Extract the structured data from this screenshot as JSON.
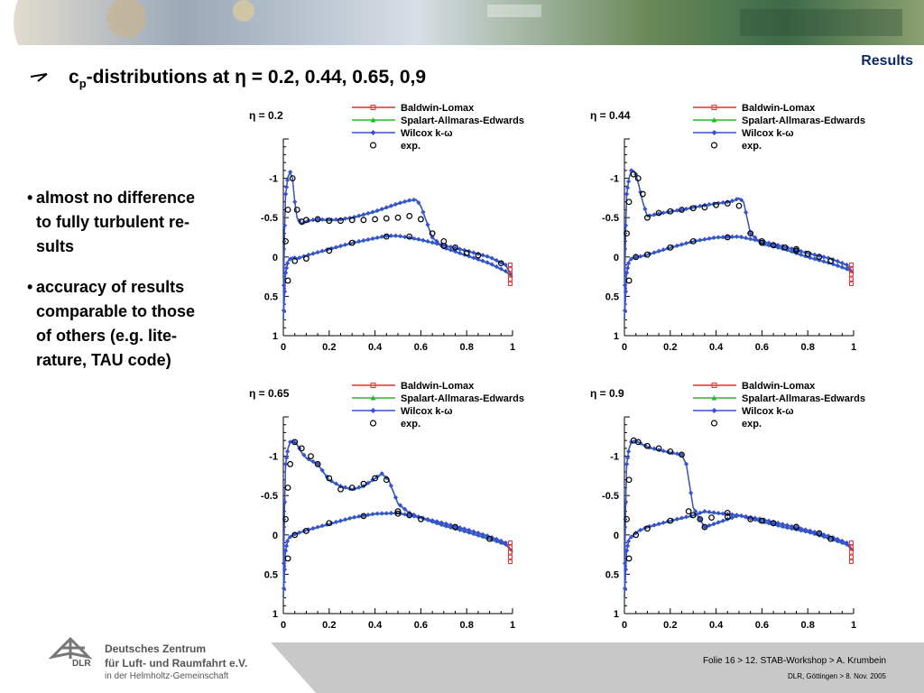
{
  "header": {
    "section": "Results",
    "title_prefix": "c",
    "title_sub": "p",
    "title_rest": "-distributions at η = 0.2, 0.44, 0.65, 0,9"
  },
  "bullets": [
    {
      "lines": [
        "almost no difference",
        "to fully turbulent re-",
        "sults"
      ]
    },
    {
      "lines": [
        "accuracy of results",
        "comparable to those",
        "of others (e.g. lite-",
        "rature, TAU code)"
      ]
    }
  ],
  "footer": {
    "org_line1": "Deutsches Zentrum",
    "org_line2": "für Luft- und Raumfahrt e.V.",
    "org_line3": "in der Helmholtz-Gemeinschaft",
    "logo_text": "DLR",
    "slide_info": "Folie 16 > 12. STAB-Workshop > A. Krumbein",
    "location_date": "DLR, Göttingen > 8. Nov. 2005"
  },
  "colors": {
    "baldwin": "#e03030",
    "spalart": "#20c020",
    "wilcox": "#3a4fd8",
    "exp": "#000000",
    "title_blue": "#0b2a6a"
  },
  "chart_data": [
    {
      "type": "line",
      "eta_label": "η = 0.2",
      "xlim": [
        0,
        1
      ],
      "ylim": [
        -1.5,
        1
      ],
      "y_inverted": true,
      "xticks": [
        "0",
        "0.2",
        "0.4",
        "0.6",
        "0.8",
        "1"
      ],
      "yticks": [
        "-1",
        "-0.5",
        "0",
        "0.5",
        "1"
      ],
      "legend": [
        "Baldwin-Lomax",
        "Spalart-Allmaras-Edwards",
        "Wilcox k-ω",
        "exp."
      ],
      "upper": {
        "x": [
          0,
          0.005,
          0.01,
          0.02,
          0.03,
          0.04,
          0.05,
          0.06,
          0.08,
          0.1,
          0.15,
          0.2,
          0.25,
          0.3,
          0.35,
          0.4,
          0.45,
          0.5,
          0.55,
          0.58,
          0.6,
          0.65,
          0.7,
          0.8,
          0.9,
          0.97,
          1.0
        ],
        "y": [
          0.8,
          -0.3,
          -0.8,
          -1.02,
          -1.08,
          -1.0,
          -0.7,
          -0.5,
          -0.42,
          -0.46,
          -0.48,
          -0.47,
          -0.48,
          -0.5,
          -0.54,
          -0.58,
          -0.63,
          -0.68,
          -0.72,
          -0.73,
          -0.65,
          -0.25,
          -0.12,
          -0.02,
          0.08,
          0.18,
          0.25
        ]
      },
      "lower": {
        "x": [
          0,
          0.01,
          0.02,
          0.04,
          0.06,
          0.1,
          0.2,
          0.3,
          0.4,
          0.45,
          0.5,
          0.6,
          0.7,
          0.8,
          0.9,
          0.97,
          1.0
        ],
        "y": [
          0.8,
          0.2,
          0.05,
          0.0,
          0.02,
          -0.02,
          -0.1,
          -0.18,
          -0.24,
          -0.27,
          -0.27,
          -0.22,
          -0.15,
          -0.08,
          0.0,
          0.1,
          0.25
        ]
      },
      "exp_upper": {
        "x": [
          0.01,
          0.02,
          0.04,
          0.06,
          0.08,
          0.1,
          0.15,
          0.2,
          0.25,
          0.3,
          0.35,
          0.4,
          0.45,
          0.5,
          0.55,
          0.6,
          0.65,
          0.7,
          0.75,
          0.8
        ],
        "y": [
          -0.2,
          -0.6,
          -1.0,
          -0.6,
          -0.45,
          -0.47,
          -0.48,
          -0.46,
          -0.46,
          -0.47,
          -0.47,
          -0.48,
          -0.49,
          -0.5,
          -0.52,
          -0.48,
          -0.3,
          -0.2,
          -0.12,
          -0.05
        ]
      },
      "exp_lower": {
        "x": [
          0.02,
          0.05,
          0.1,
          0.2,
          0.3,
          0.45,
          0.55,
          0.7,
          0.85,
          0.95
        ],
        "y": [
          0.3,
          0.05,
          0.02,
          -0.08,
          -0.18,
          -0.26,
          -0.26,
          -0.14,
          -0.02,
          0.08
        ]
      }
    },
    {
      "type": "line",
      "eta_label": "η = 0.44",
      "xlim": [
        0,
        1
      ],
      "ylim": [
        -1.5,
        1
      ],
      "y_inverted": true,
      "xticks": [
        "0",
        "0.2",
        "0.4",
        "0.6",
        "0.8",
        "1"
      ],
      "yticks": [
        "-1",
        "-0.5",
        "0",
        "0.5",
        "1"
      ],
      "legend": [
        "Baldwin-Lomax",
        "Spalart-Allmaras-Edwards",
        "Wilcox k-ω",
        "exp."
      ],
      "upper": {
        "x": [
          0,
          0.005,
          0.01,
          0.02,
          0.03,
          0.04,
          0.05,
          0.06,
          0.08,
          0.1,
          0.15,
          0.2,
          0.25,
          0.3,
          0.35,
          0.4,
          0.45,
          0.48,
          0.5,
          0.52,
          0.55,
          0.6,
          0.7,
          0.8,
          0.9,
          0.97,
          1.0
        ],
        "y": [
          0.8,
          -0.3,
          -0.8,
          -1.0,
          -1.1,
          -1.1,
          -1.05,
          -0.95,
          -0.7,
          -0.52,
          -0.55,
          -0.58,
          -0.6,
          -0.63,
          -0.66,
          -0.68,
          -0.7,
          -0.72,
          -0.75,
          -0.7,
          -0.3,
          -0.17,
          -0.1,
          0.0,
          0.08,
          0.15,
          0.2
        ]
      },
      "lower": {
        "x": [
          0,
          0.01,
          0.02,
          0.04,
          0.06,
          0.1,
          0.2,
          0.3,
          0.4,
          0.5,
          0.6,
          0.7,
          0.8,
          0.9,
          0.97,
          1.0
        ],
        "y": [
          0.8,
          0.2,
          0.05,
          0.0,
          0.0,
          -0.03,
          -0.12,
          -0.2,
          -0.25,
          -0.26,
          -0.2,
          -0.13,
          -0.05,
          0.02,
          0.1,
          0.2
        ]
      },
      "exp_upper": {
        "x": [
          0.01,
          0.02,
          0.04,
          0.06,
          0.08,
          0.1,
          0.15,
          0.2,
          0.25,
          0.3,
          0.35,
          0.4,
          0.45,
          0.5,
          0.55,
          0.6,
          0.65,
          0.7,
          0.75,
          0.8,
          0.85
        ],
        "y": [
          -0.3,
          -0.7,
          -1.05,
          -1.0,
          -0.8,
          -0.5,
          -0.56,
          -0.58,
          -0.6,
          -0.62,
          -0.63,
          -0.66,
          -0.68,
          -0.65,
          -0.3,
          -0.2,
          -0.15,
          -0.12,
          -0.08,
          -0.04,
          0.0
        ]
      },
      "exp_lower": {
        "x": [
          0.02,
          0.05,
          0.1,
          0.2,
          0.3,
          0.45,
          0.6,
          0.75,
          0.9
        ],
        "y": [
          0.3,
          0.0,
          -0.03,
          -0.12,
          -0.2,
          -0.25,
          -0.18,
          -0.1,
          0.05
        ]
      }
    },
    {
      "type": "line",
      "eta_label": "η = 0.65",
      "xlim": [
        0,
        1
      ],
      "ylim": [
        -1.5,
        1
      ],
      "y_inverted": true,
      "xticks": [
        "0",
        "0.2",
        "0.4",
        "0.6",
        "0.8",
        "1"
      ],
      "yticks": [
        "-1",
        "-0.5",
        "0",
        "0.5",
        "1"
      ],
      "legend": [
        "Baldwin-Lomax",
        "Spalart-Allmaras-Edwards",
        "Wilcox k-ω",
        "exp."
      ],
      "upper": {
        "x": [
          0,
          0.005,
          0.01,
          0.02,
          0.03,
          0.04,
          0.06,
          0.08,
          0.1,
          0.15,
          0.2,
          0.25,
          0.3,
          0.35,
          0.4,
          0.43,
          0.46,
          0.5,
          0.55,
          0.6,
          0.7,
          0.8,
          0.9,
          0.97,
          1.0
        ],
        "y": [
          0.8,
          -0.3,
          -0.9,
          -1.1,
          -1.18,
          -1.2,
          -1.15,
          -1.05,
          -0.98,
          -0.9,
          -0.7,
          -0.62,
          -0.58,
          -0.62,
          -0.72,
          -0.78,
          -0.7,
          -0.4,
          -0.28,
          -0.22,
          -0.12,
          -0.04,
          0.05,
          0.12,
          0.2
        ]
      },
      "lower": {
        "x": [
          0,
          0.01,
          0.02,
          0.04,
          0.06,
          0.1,
          0.2,
          0.3,
          0.4,
          0.5,
          0.6,
          0.7,
          0.8,
          0.9,
          0.97,
          1.0
        ],
        "y": [
          0.8,
          0.2,
          0.05,
          0.0,
          -0.02,
          -0.06,
          -0.14,
          -0.22,
          -0.27,
          -0.28,
          -0.22,
          -0.15,
          -0.07,
          0.02,
          0.1,
          0.22
        ]
      },
      "exp_upper": {
        "x": [
          0.01,
          0.02,
          0.03,
          0.05,
          0.08,
          0.12,
          0.15,
          0.2,
          0.25,
          0.3,
          0.35,
          0.4,
          0.45,
          0.5,
          0.55
        ],
        "y": [
          -0.2,
          -0.6,
          -0.9,
          -1.18,
          -1.1,
          -1.0,
          -0.9,
          -0.72,
          -0.58,
          -0.6,
          -0.65,
          -0.72,
          -0.7,
          -0.3,
          -0.25
        ]
      },
      "exp_lower": {
        "x": [
          0.02,
          0.05,
          0.1,
          0.2,
          0.35,
          0.5,
          0.6,
          0.75,
          0.9
        ],
        "y": [
          0.3,
          0.0,
          -0.05,
          -0.15,
          -0.24,
          -0.27,
          -0.2,
          -0.1,
          0.05
        ]
      }
    },
    {
      "type": "line",
      "eta_label": "η = 0.9",
      "xlim": [
        0,
        1
      ],
      "ylim": [
        -1.5,
        1
      ],
      "y_inverted": true,
      "xticks": [
        "0",
        "0.2",
        "0.4",
        "0.6",
        "0.8",
        "1"
      ],
      "yticks": [
        "-1",
        "-0.5",
        "0",
        "0.5",
        "1"
      ],
      "legend": [
        "Baldwin-Lomax",
        "Spalart-Allmaras-Edwards",
        "Wilcox k-ω",
        "exp."
      ],
      "upper": {
        "x": [
          0,
          0.005,
          0.01,
          0.02,
          0.03,
          0.04,
          0.06,
          0.08,
          0.1,
          0.15,
          0.2,
          0.25,
          0.27,
          0.3,
          0.35,
          0.4,
          0.5,
          0.6,
          0.7,
          0.8,
          0.9,
          0.97,
          1.0
        ],
        "y": [
          0.8,
          -0.3,
          -0.9,
          -1.1,
          -1.18,
          -1.2,
          -1.18,
          -1.15,
          -1.12,
          -1.08,
          -1.05,
          -1.02,
          -0.9,
          -0.35,
          -0.1,
          -0.15,
          -0.25,
          -0.17,
          -0.1,
          -0.04,
          0.05,
          0.12,
          0.2
        ]
      },
      "lower": {
        "x": [
          0,
          0.01,
          0.02,
          0.04,
          0.06,
          0.1,
          0.2,
          0.3,
          0.35,
          0.4,
          0.5,
          0.6,
          0.7,
          0.8,
          0.9,
          0.97,
          1.0
        ],
        "y": [
          0.8,
          0.2,
          0.05,
          0.0,
          -0.05,
          -0.1,
          -0.18,
          -0.25,
          -0.3,
          -0.28,
          -0.25,
          -0.2,
          -0.13,
          -0.06,
          0.02,
          0.1,
          0.2
        ]
      },
      "exp_upper": {
        "x": [
          0.01,
          0.02,
          0.04,
          0.06,
          0.1,
          0.15,
          0.2,
          0.25,
          0.28,
          0.33,
          0.38,
          0.45,
          0.55,
          0.65,
          0.75,
          0.85
        ],
        "y": [
          -0.2,
          -0.7,
          -1.2,
          -1.18,
          -1.13,
          -1.1,
          -1.06,
          -1.02,
          -0.3,
          -0.2,
          -0.22,
          -0.28,
          -0.2,
          -0.15,
          -0.1,
          -0.02
        ]
      },
      "exp_lower": {
        "x": [
          0.02,
          0.05,
          0.1,
          0.2,
          0.3,
          0.35,
          0.45,
          0.6,
          0.75,
          0.9
        ],
        "y": [
          0.3,
          0.0,
          -0.08,
          -0.18,
          -0.25,
          -0.1,
          -0.23,
          -0.18,
          -0.1,
          0.05
        ]
      }
    }
  ]
}
